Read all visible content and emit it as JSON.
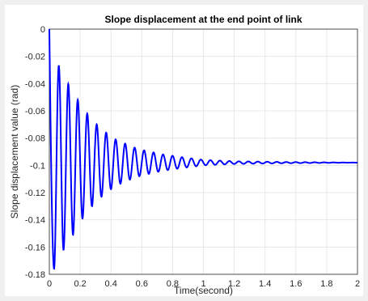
{
  "chart_data": {
    "type": "line",
    "title": "Slope displacement at the end point of link",
    "xlabel": "Time(second)",
    "ylabel": "Slope displacement value (rad)",
    "xlim": [
      0,
      2
    ],
    "ylim": [
      -0.18,
      0
    ],
    "xticks": [
      "0",
      "0.2",
      "0.4",
      "0.6",
      "0.8",
      "1",
      "1.2",
      "1.4",
      "1.6",
      "1.8",
      "2"
    ],
    "yticks": [
      "0",
      "-0.02",
      "-0.04",
      "-0.06",
      "-0.08",
      "-0.1",
      "-0.12",
      "-0.14",
      "-0.16",
      "-0.18"
    ],
    "grid": true,
    "series": [
      {
        "color": "#0000ff",
        "equilibrium": -0.098,
        "period": 0.0615,
        "peaks": [
          {
            "x": 0.0,
            "y": 0.0
          },
          {
            "x": 0.031,
            "y": -0.176
          },
          {
            "x": 0.077,
            "y": -0.03
          },
          {
            "x": 0.108,
            "y": -0.158
          },
          {
            "x": 0.154,
            "y": -0.045
          },
          {
            "x": 0.185,
            "y": -0.144
          },
          {
            "x": 0.246,
            "y": -0.134
          },
          {
            "x": 0.308,
            "y": -0.126
          },
          {
            "x": 0.369,
            "y": -0.12
          },
          {
            "x": 0.431,
            "y": -0.115
          },
          {
            "x": 0.492,
            "y": -0.112
          },
          {
            "x": 0.554,
            "y": -0.109
          },
          {
            "x": 0.615,
            "y": -0.107
          },
          {
            "x": 0.738,
            "y": -0.104
          },
          {
            "x": 0.862,
            "y": -0.102
          },
          {
            "x": 1.0,
            "y": -0.1
          },
          {
            "x": 1.2,
            "y": -0.099
          },
          {
            "x": 1.5,
            "y": -0.0985
          },
          {
            "x": 2.0,
            "y": -0.098
          }
        ]
      }
    ]
  }
}
